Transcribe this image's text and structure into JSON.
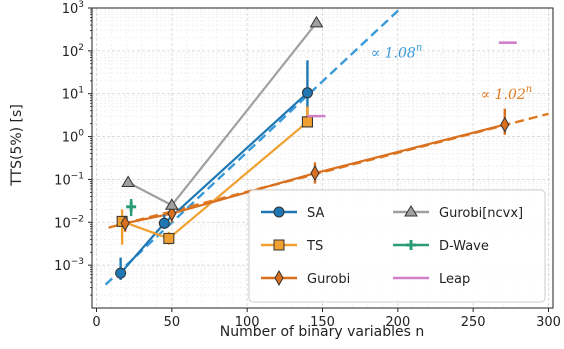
{
  "chart_data": {
    "type": "scatter",
    "xlabel": "Number of binary variables n",
    "ylabel": "TTS(5%) [s]",
    "x_range": [
      -3,
      303
    ],
    "y_range_log10": [
      -4,
      3
    ],
    "y_scale": "log",
    "grid": true,
    "legend_position": "lower-right",
    "x_ticks": [
      "0",
      "50",
      "100",
      "150",
      "200",
      "250",
      "300"
    ],
    "y_ticks": [
      "10^-3",
      "10^-2",
      "10^-1",
      "10^0",
      "10^1",
      "10^2",
      "10^3"
    ],
    "series": [
      {
        "name": "SA",
        "color": "#1f77b4",
        "marker": "circle",
        "x": [
          16,
          45,
          140
        ],
        "y": [
          0.00065,
          0.0095,
          10.5
        ],
        "err_low": [
          0.00045,
          0.007,
          2.5
        ],
        "err_high": [
          0.0015,
          0.015,
          60
        ],
        "connect": true
      },
      {
        "name": "TS",
        "color": "#f0a030",
        "marker": "square",
        "x": [
          17,
          48,
          140,
          140
        ],
        "y": [
          0.0105,
          0.0042,
          2.2,
          2.2
        ],
        "err_low": [
          0.003,
          0.003,
          1.8,
          1.8
        ],
        "err_high": [
          0.02,
          0.006,
          5,
          5
        ],
        "connect": true
      },
      {
        "name": "Gurobi",
        "color": "#d97020",
        "marker": "diamond",
        "x": [
          19,
          50,
          145,
          271
        ],
        "y": [
          0.0095,
          0.016,
          0.14,
          1.9
        ],
        "err_low": [
          0.006,
          0.01,
          0.08,
          1.1
        ],
        "err_high": [
          0.014,
          0.025,
          0.25,
          4.5
        ],
        "connect": true
      },
      {
        "name": "Gurobi[ncvx]",
        "color": "#a0a0a0",
        "marker": "triangle",
        "x": [
          21,
          50,
          146
        ],
        "y": [
          0.085,
          0.025,
          450
        ],
        "connect": true
      },
      {
        "name": "D-Wave",
        "color": "#2a9d78",
        "marker": "plus",
        "x": [
          23
        ],
        "y": [
          0.023
        ],
        "err_low": [
          0.014
        ],
        "err_high": [
          0.035
        ],
        "connect": false
      },
      {
        "name": "Leap",
        "color": "#d080c8",
        "marker": "hline",
        "x": [
          146,
          273
        ],
        "y": [
          3.0,
          155
        ],
        "connect": false
      }
    ],
    "fits": [
      {
        "series": "SA",
        "label": "∝ 1.08",
        "exponent": "n",
        "color": "#3a9ad8",
        "x_range": [
          6,
          202
        ],
        "y_range": [
          0.00035,
          1000
        ]
      },
      {
        "series": "Gurobi",
        "label": "∝ 1.02",
        "exponent": "n",
        "color": "#e07a20",
        "x_range": [
          8,
          300
        ],
        "y_range": [
          0.0075,
          3.4
        ]
      }
    ],
    "annotations": [
      {
        "text_bind": "fits.0",
        "x": 182,
        "y": 70
      },
      {
        "text_bind": "fits.1",
        "x": 255,
        "y": 7.5
      }
    ]
  }
}
